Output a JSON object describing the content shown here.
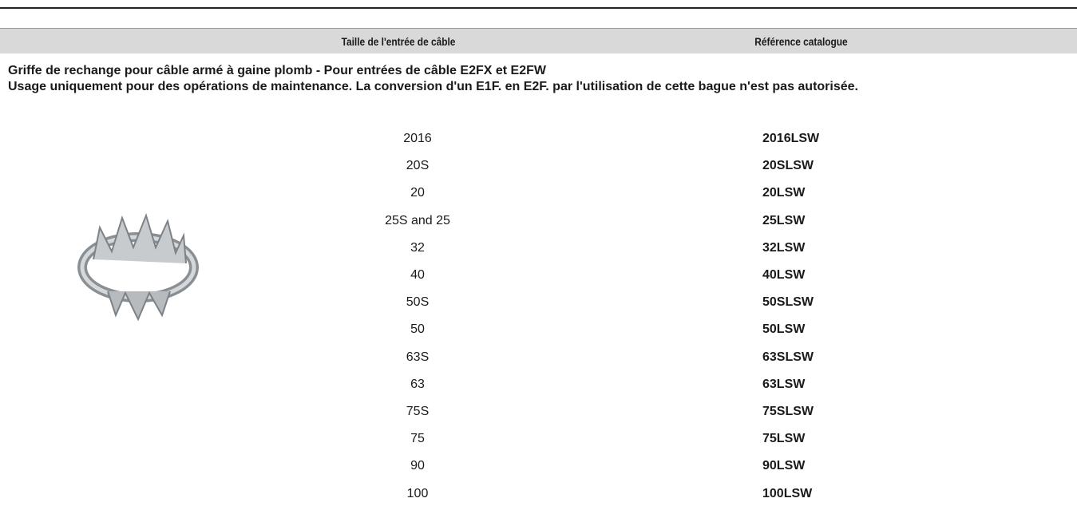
{
  "table": {
    "columns": [
      "Taille de l'entrée de câble",
      "Référence catalogue"
    ],
    "description": [
      "Griffe de rechange pour câble armé à gaine plomb - Pour entrées de câble E2FX et E2FW",
      "Usage uniquement pour des opérations de maintenance. La conversion d'un E1F. en E2F. par l'utilisation de cette bague n'est pas autorisée."
    ],
    "rows": [
      [
        "2016",
        "2016LSW"
      ],
      [
        "20S",
        "20SLSW"
      ],
      [
        "20",
        "20LSW"
      ],
      [
        "25S and 25",
        "25LSW"
      ],
      [
        "32",
        "32LSW"
      ],
      [
        "40",
        "40LSW"
      ],
      [
        "50S",
        "50SLSW"
      ],
      [
        "50",
        "50LSW"
      ],
      [
        "63S",
        "63SLSW"
      ],
      [
        "63",
        "63LSW"
      ],
      [
        "75S",
        "75SLSW"
      ],
      [
        "75",
        "75LSW"
      ],
      [
        "90",
        "90LSW"
      ],
      [
        "100",
        "100LSW"
      ]
    ]
  }
}
